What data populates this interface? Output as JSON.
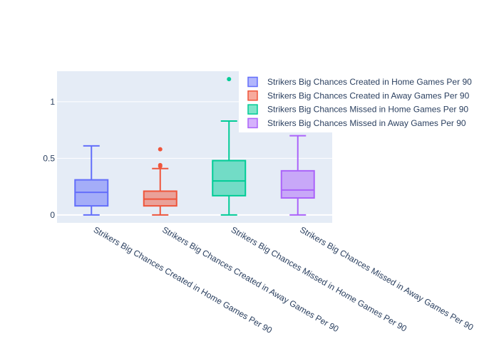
{
  "chart_data": {
    "type": "box",
    "title": "",
    "xlabel": "",
    "ylabel": "",
    "ylim": [
      -0.07,
      1.27
    ],
    "yticks": [
      0,
      0.5,
      1
    ],
    "ytick_labels": [
      "0",
      "0.5",
      "1"
    ],
    "grid": true,
    "legend_position": "top-right",
    "plot_background": "#e5ecf6",
    "series": [
      {
        "name": "Strikers Big Chances Created in Home Games Per 90",
        "category": "Strikers Big Chances Created in Home Games Per 90",
        "color": "#636efa",
        "min": 0,
        "q1": 0.08,
        "median": 0.2,
        "q3": 0.31,
        "max": 0.61,
        "outliers": []
      },
      {
        "name": "Strikers Big Chances Created in Away Games Per 90",
        "category": "Strikers Big Chances Created in Away Games Per 90",
        "color": "#ef553b",
        "min": 0,
        "q1": 0.08,
        "median": 0.14,
        "q3": 0.21,
        "max": 0.41,
        "outliers": [
          0.43,
          0.44,
          0.58
        ]
      },
      {
        "name": "Strikers Big Chances Missed in Home Games Per 90",
        "category": "Strikers Big Chances Missed in Home Games Per 90",
        "color": "#00cc96",
        "min": 0,
        "q1": 0.17,
        "median": 0.3,
        "q3": 0.48,
        "max": 0.83,
        "outliers": [
          1.2
        ]
      },
      {
        "name": "Strikers Big Chances Missed in Away Games Per 90",
        "category": "Strikers Big Chances Missed in Away Games Per 90",
        "color": "#ab63fa",
        "min": 0,
        "q1": 0.15,
        "median": 0.22,
        "q3": 0.39,
        "max": 0.7,
        "outliers": []
      }
    ]
  }
}
